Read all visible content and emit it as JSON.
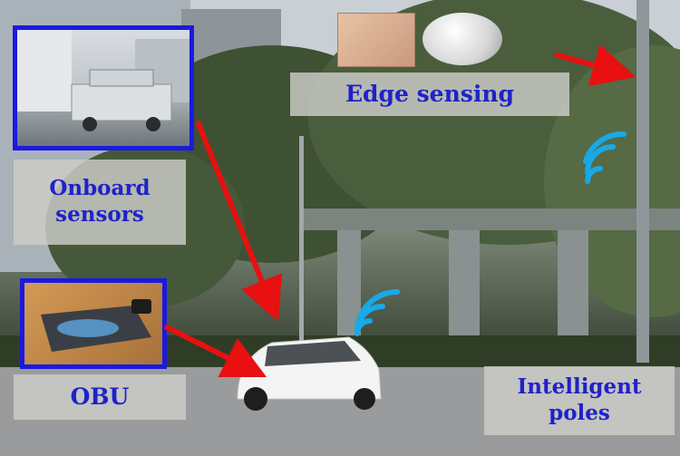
{
  "labels": {
    "edge_sensing": "Edge sensing",
    "onboard_sensors": "Onboard sensors",
    "obu": "OBU",
    "intelligent_poles": "Intelligent poles"
  },
  "colors": {
    "label_text": "#1f22c9",
    "inset_border": "#1a1ae0",
    "arrow": "#e81010",
    "wifi": "#18a9e6"
  },
  "icons": {
    "wifi_pole": "wifi-signal-icon",
    "wifi_car": "wifi-signal-icon"
  }
}
